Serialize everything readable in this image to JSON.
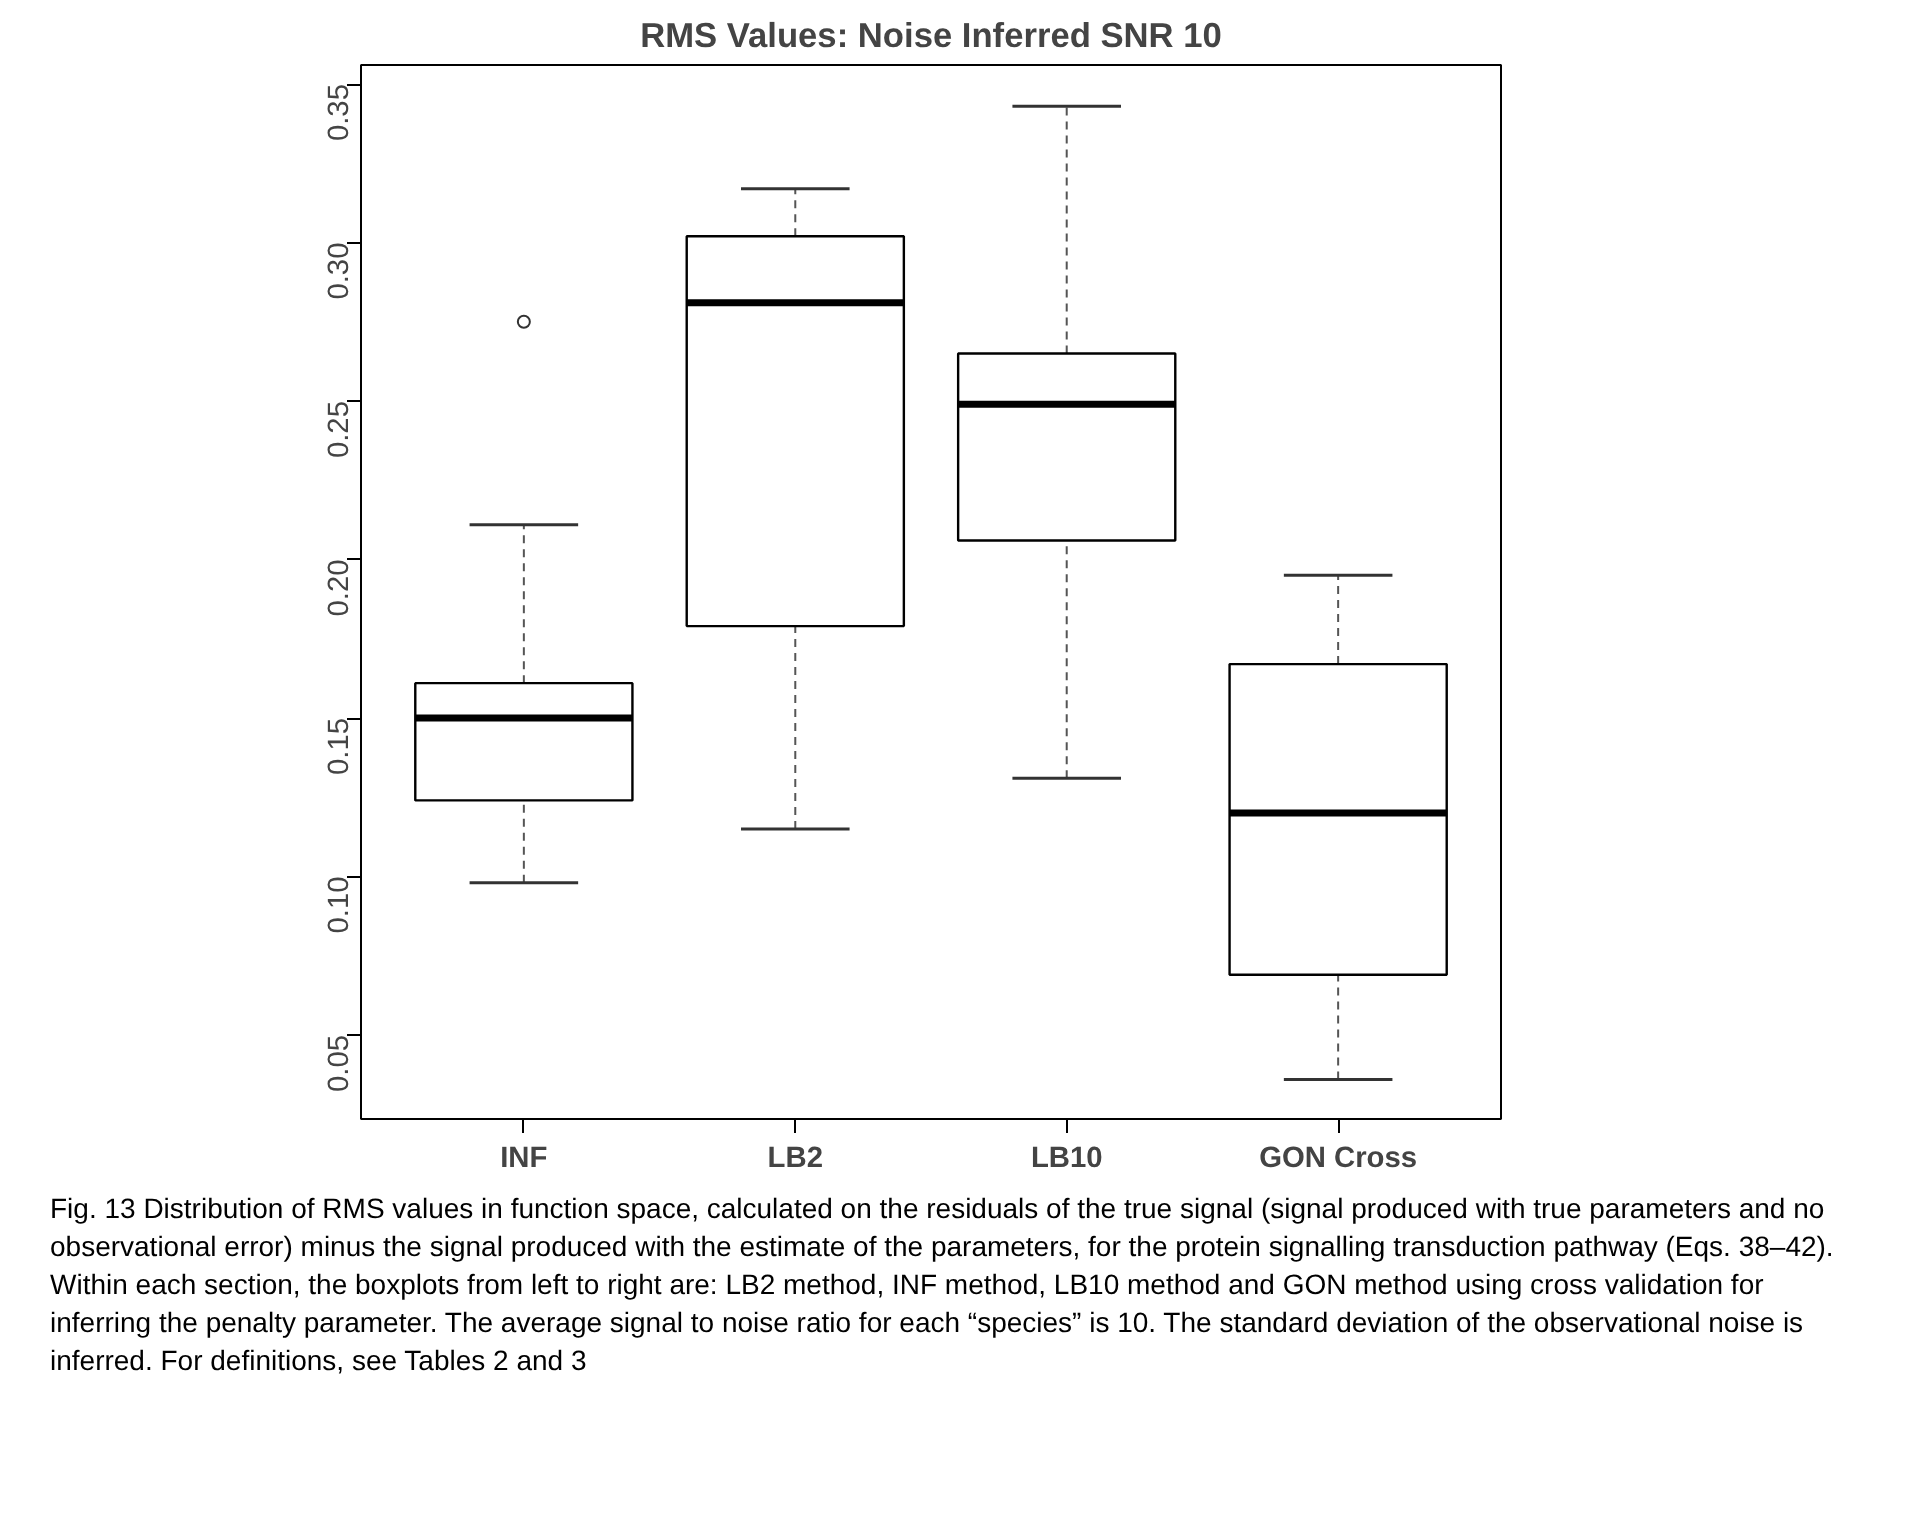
{
  "chart_data": {
    "type": "box",
    "title": "RMS Values: Noise Inferred SNR 10",
    "categories": [
      "INF",
      "LB2",
      "LB10",
      "GON Cross"
    ],
    "boxes": [
      {
        "low": 0.098,
        "q1": 0.124,
        "median": 0.15,
        "q3": 0.161,
        "high": 0.211,
        "outliers": [
          0.275
        ]
      },
      {
        "low": 0.115,
        "q1": 0.179,
        "median": 0.281,
        "q3": 0.302,
        "high": 0.317
      },
      {
        "low": 0.131,
        "q1": 0.206,
        "median": 0.249,
        "q3": 0.265,
        "high": 0.343
      },
      {
        "low": 0.036,
        "q1": 0.069,
        "median": 0.12,
        "q3": 0.167,
        "high": 0.195
      }
    ],
    "ylim": [
      0.0235,
      0.356
    ],
    "yticks": [
      {
        "value": 0.05,
        "label": "0.05"
      },
      {
        "value": 0.1,
        "label": "0.10"
      },
      {
        "value": 0.15,
        "label": "0.15"
      },
      {
        "value": 0.2,
        "label": "0.20"
      },
      {
        "value": 0.25,
        "label": "0.25"
      },
      {
        "value": 0.3,
        "label": "0.30"
      },
      {
        "value": 0.35,
        "label": "0.35"
      }
    ],
    "grid": false,
    "annotations": [
      "Fig. 13  Distribution of RMS values in function space, calculated on the residuals of the true signal (signal produced with true parameters and no observational error) minus the signal produced with the estimate of the parameters, for the protein signalling transduction pathway (Eqs. 38–42). Within each section, the boxplots from left to right are: LB2 method, INF method, LB10 method and GON method using cross validation for inferring the penalty parameter. The average signal to noise ratio for each “species” is 10. The standard deviation of the observational noise is inferred. For definitions, see Tables 2 and 3"
    ]
  }
}
